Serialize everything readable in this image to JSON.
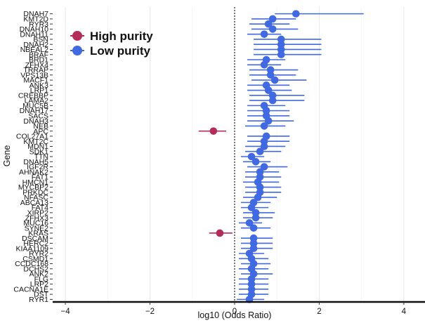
{
  "chart_data": {
    "type": "scatter",
    "subtype": "forest-plot",
    "title": "",
    "xlabel": "log10 (Odds Ratio)",
    "ylabel": "Gene",
    "xlim": [
      -4.3,
      4.5
    ],
    "xticks": [
      -4,
      -2,
      0,
      2,
      4
    ],
    "reference_line_x": 0,
    "grid": "vertical",
    "legend": {
      "position": "top-left",
      "items": [
        {
          "name": "High purity",
          "color": "#b32d5b"
        },
        {
          "name": "Low purity",
          "color": "#4169e1"
        }
      ]
    },
    "series": [
      {
        "name": "High purity",
        "color": "#b32d5b"
      },
      {
        "name": "Low purity",
        "color": "#4169e1"
      }
    ],
    "genes": [
      {
        "gene": "DNAH7",
        "group": "Low purity",
        "estimate": 1.45,
        "lower": 0.95,
        "upper": 3.05
      },
      {
        "gene": "KMT2D",
        "group": "Low purity",
        "estimate": 0.9,
        "lower": 0.4,
        "upper": 1.45
      },
      {
        "gene": "RYR3",
        "group": "Low purity",
        "estimate": 0.8,
        "lower": 0.35,
        "upper": 1.3
      },
      {
        "gene": "DNAH10",
        "group": "Low purity",
        "estimate": 0.9,
        "lower": 0.4,
        "upper": 1.5
      },
      {
        "gene": "DNAH11",
        "group": "Low purity",
        "estimate": 0.7,
        "lower": 0.3,
        "upper": 1.1
      },
      {
        "gene": "BSN",
        "group": "Low purity",
        "estimate": 1.1,
        "lower": 0.45,
        "upper": 2.05
      },
      {
        "gene": "DNAH2",
        "group": "Low purity",
        "estimate": 1.1,
        "lower": 0.45,
        "upper": 2.05
      },
      {
        "gene": "NBEAL2",
        "group": "Low purity",
        "estimate": 1.1,
        "lower": 0.45,
        "upper": 2.05
      },
      {
        "gene": "BRAF",
        "group": "Low purity",
        "estimate": 1.1,
        "lower": 0.45,
        "upper": 2.05
      },
      {
        "gene": "BRD1",
        "group": "Low purity",
        "estimate": 0.75,
        "lower": 0.3,
        "upper": 1.2
      },
      {
        "gene": "ZFHX4",
        "group": "Low purity",
        "estimate": 0.7,
        "lower": 0.3,
        "upper": 1.1
      },
      {
        "gene": "TRRAP",
        "group": "Low purity",
        "estimate": 0.85,
        "lower": 0.35,
        "upper": 1.5
      },
      {
        "gene": "VPS13B",
        "group": "Low purity",
        "estimate": 0.85,
        "lower": 0.35,
        "upper": 1.45
      },
      {
        "gene": "MACF1",
        "group": "Low purity",
        "estimate": 0.95,
        "lower": 0.4,
        "upper": 1.7
      },
      {
        "gene": "ANK3",
        "group": "Low purity",
        "estimate": 0.75,
        "lower": 0.3,
        "upper": 1.3
      },
      {
        "gene": "LRP1",
        "group": "Low purity",
        "estimate": 0.8,
        "lower": 0.3,
        "upper": 1.35
      },
      {
        "gene": "CREBBP",
        "group": "Low purity",
        "estimate": 0.9,
        "lower": 0.35,
        "upper": 1.65
      },
      {
        "gene": "LAMA2",
        "group": "Low purity",
        "estimate": 0.9,
        "lower": 0.35,
        "upper": 1.65
      },
      {
        "gene": "MUC5B",
        "group": "Low purity",
        "estimate": 0.7,
        "lower": 0.3,
        "upper": 1.2
      },
      {
        "gene": "DNAH17",
        "group": "Low purity",
        "estimate": 0.75,
        "lower": 0.3,
        "upper": 1.3
      },
      {
        "gene": "SACS",
        "group": "Low purity",
        "estimate": 0.75,
        "lower": 0.3,
        "upper": 1.3
      },
      {
        "gene": "DNAH3",
        "group": "Low purity",
        "estimate": 0.8,
        "lower": 0.3,
        "upper": 1.4
      },
      {
        "gene": "NEB",
        "group": "Low purity",
        "estimate": 0.7,
        "lower": 0.25,
        "upper": 1.2
      },
      {
        "gene": "APC",
        "group": "High purity",
        "estimate": -0.5,
        "lower": -0.85,
        "upper": -0.2
      },
      {
        "gene": "COL27A1",
        "group": "Low purity",
        "estimate": 0.75,
        "lower": 0.3,
        "upper": 1.3
      },
      {
        "gene": "KMT2C",
        "group": "Low purity",
        "estimate": 0.7,
        "lower": 0.3,
        "upper": 1.3
      },
      {
        "gene": "MDN1",
        "group": "Low purity",
        "estimate": 0.7,
        "lower": 0.25,
        "upper": 1.2
      },
      {
        "gene": "SDK1",
        "group": "Low purity",
        "estimate": 0.6,
        "lower": 0.25,
        "upper": 1.1
      },
      {
        "gene": "TTN",
        "group": "Low purity",
        "estimate": 0.4,
        "lower": 0.15,
        "upper": 0.7
      },
      {
        "gene": "DNAH5",
        "group": "Low purity",
        "estimate": 0.5,
        "lower": 0.2,
        "upper": 0.85
      },
      {
        "gene": "IGF2R",
        "group": "Low purity",
        "estimate": 0.7,
        "lower": 0.3,
        "upper": 1.25
      },
      {
        "gene": "AHNAK2",
        "group": "Low purity",
        "estimate": 0.6,
        "lower": 0.25,
        "upper": 1.05
      },
      {
        "gene": "FAT1",
        "group": "Low purity",
        "estimate": 0.6,
        "lower": 0.25,
        "upper": 1.1
      },
      {
        "gene": "HMCN1",
        "group": "Low purity",
        "estimate": 0.55,
        "lower": 0.2,
        "upper": 1.05
      },
      {
        "gene": "MYCBP2",
        "group": "Low purity",
        "estimate": 0.6,
        "lower": 0.25,
        "upper": 1.1
      },
      {
        "gene": "PRKDC",
        "group": "Low purity",
        "estimate": 0.6,
        "lower": 0.25,
        "upper": 1.1
      },
      {
        "gene": "NFASC",
        "group": "Low purity",
        "estimate": 0.55,
        "lower": 0.2,
        "upper": 1.0
      },
      {
        "gene": "ABCA13",
        "group": "Low purity",
        "estimate": 0.45,
        "lower": 0.15,
        "upper": 0.85
      },
      {
        "gene": "FAT4",
        "group": "Low purity",
        "estimate": 0.4,
        "lower": 0.15,
        "upper": 0.8
      },
      {
        "gene": "XIRP2",
        "group": "Low purity",
        "estimate": 0.5,
        "lower": 0.2,
        "upper": 0.95
      },
      {
        "gene": "ZFHX3",
        "group": "Low purity",
        "estimate": 0.5,
        "lower": 0.2,
        "upper": 0.9
      },
      {
        "gene": "MUC16",
        "group": "Low purity",
        "estimate": 0.35,
        "lower": 0.1,
        "upper": 0.65
      },
      {
        "gene": "SYNE2",
        "group": "Low purity",
        "estimate": 0.45,
        "lower": 0.15,
        "upper": 0.85
      },
      {
        "gene": "KRAS",
        "group": "High purity",
        "estimate": -0.35,
        "lower": -0.6,
        "upper": -0.05
      },
      {
        "gene": "DSCAM",
        "group": "Low purity",
        "estimate": 0.45,
        "lower": 0.15,
        "upper": 0.9
      },
      {
        "gene": "HERC2",
        "group": "Low purity",
        "estimate": 0.45,
        "lower": 0.15,
        "upper": 0.9
      },
      {
        "gene": "KIAA1109",
        "group": "Low purity",
        "estimate": 0.45,
        "lower": 0.15,
        "upper": 0.9
      },
      {
        "gene": "RYR2",
        "group": "Low purity",
        "estimate": 0.35,
        "lower": 0.1,
        "upper": 0.7
      },
      {
        "gene": "CSMD1",
        "group": "Low purity",
        "estimate": 0.4,
        "lower": 0.1,
        "upper": 0.8
      },
      {
        "gene": "CCDC168",
        "group": "Low purity",
        "estimate": 0.45,
        "lower": 0.15,
        "upper": 0.85
      },
      {
        "gene": "DCHS2",
        "group": "Low purity",
        "estimate": 0.4,
        "lower": 0.1,
        "upper": 0.8
      },
      {
        "gene": "ANK2",
        "group": "Low purity",
        "estimate": 0.45,
        "lower": 0.15,
        "upper": 0.9
      },
      {
        "gene": "FLG",
        "group": "Low purity",
        "estimate": 0.4,
        "lower": 0.1,
        "upper": 0.8
      },
      {
        "gene": "LRP2",
        "group": "Low purity",
        "estimate": 0.4,
        "lower": 0.1,
        "upper": 0.8
      },
      {
        "gene": "CACNA1E",
        "group": "Low purity",
        "estimate": 0.4,
        "lower": 0.1,
        "upper": 0.8
      },
      {
        "gene": "DST",
        "group": "Low purity",
        "estimate": 0.4,
        "lower": 0.1,
        "upper": 0.8
      },
      {
        "gene": "RYR1",
        "group": "Low purity",
        "estimate": 0.35,
        "lower": 0.05,
        "upper": 0.7
      }
    ]
  }
}
